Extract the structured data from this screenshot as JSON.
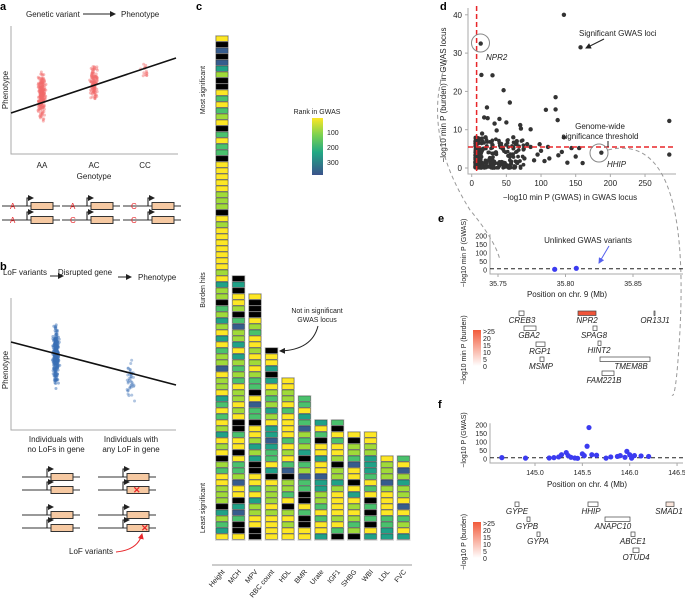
{
  "panels": {
    "a": {
      "label": "a",
      "flow": [
        "Genetic variant",
        "Phenotype"
      ],
      "ylabel": "Phenotype",
      "xlabel": "Genotype",
      "categories": [
        "AA",
        "AC",
        "CC"
      ],
      "genotype_rows": [
        [
          "A",
          "A"
        ],
        [
          "A",
          "C"
        ],
        [
          "C",
          "C"
        ]
      ],
      "point_color": "#f26b6b"
    },
    "b": {
      "label": "b",
      "flow": [
        "LoF variants",
        "Disrupted gene",
        "Phenotype"
      ],
      "ylabel": "Phenotype",
      "categories": [
        [
          "Individuals with",
          "no LoFs in gene"
        ],
        [
          "Individuals with",
          "any LoF in gene"
        ]
      ],
      "lof_label": "LoF variants",
      "point_color": "#3a6fb5"
    },
    "c": {
      "label": "c",
      "ylabel_top": "Most significant",
      "ylabel_mid": "Burden hits",
      "ylabel_bottom": "Least significant",
      "legend_title": "Rank in GWAS",
      "legend_ticks": [
        "100",
        "200",
        "300"
      ],
      "annotation": [
        "Not in significant",
        "GWAS locus"
      ],
      "traits": [
        "Height",
        "MCH",
        "MPV",
        "RBC count",
        "HDL",
        "BMR",
        "Urate",
        "IGF1",
        "SHBG",
        "WBI",
        "LDL",
        "FVC"
      ],
      "burden_hit_counts": [
        84,
        44,
        41,
        32,
        27,
        24,
        20,
        20,
        18,
        18,
        14,
        14
      ],
      "colors": {
        "not_in_locus": "#000000",
        "viridis": [
          "#fde725",
          "#a0da39",
          "#4ac16d",
          "#1fa187",
          "#277f8e",
          "#365c8d"
        ]
      }
    },
    "d": {
      "label": "d",
      "xlabel": "−log10 min P (GWAS) in GWAS locus",
      "ylabel": "−log10 min P (burden) in GWAS locus",
      "x_ticks": [
        "0",
        "50",
        "100",
        "150",
        "200",
        "250"
      ],
      "y_ticks": [
        "0",
        "10",
        "20",
        "30",
        "40"
      ],
      "annotations": [
        "Significant GWAS loci",
        "Genome-wide",
        "significance threshold"
      ],
      "highlight_genes": [
        "NPR2",
        "HHIP"
      ],
      "threshold_color": "#e8262a",
      "points": [
        [
          13,
          32.5
        ],
        [
          157,
          31.5
        ],
        [
          133,
          40
        ],
        [
          14,
          24.3
        ],
        [
          30,
          24.2
        ],
        [
          46,
          20.3
        ],
        [
          55,
          17.1
        ],
        [
          121,
          18.5
        ],
        [
          121,
          15.3
        ],
        [
          107,
          15.2
        ],
        [
          124,
          12.5
        ],
        [
          22,
          15.8
        ],
        [
          18,
          13.2
        ],
        [
          23,
          13
        ],
        [
          40,
          12.8
        ],
        [
          33,
          11.6
        ],
        [
          50,
          11.9
        ],
        [
          36,
          9.8
        ],
        [
          70,
          11.2
        ],
        [
          71,
          10.3
        ],
        [
          85,
          10.1
        ],
        [
          133,
          8
        ],
        [
          285,
          12.3
        ],
        [
          285,
          3.5
        ],
        [
          187,
          4
        ],
        [
          160,
          1.3
        ],
        [
          138,
          1.4
        ],
        [
          150,
          3
        ],
        [
          155,
          5.2
        ],
        [
          144,
          5.2
        ],
        [
          130,
          4.2
        ],
        [
          125,
          3.3
        ],
        [
          112,
          2.5
        ],
        [
          100,
          4.5
        ],
        [
          95,
          3.5
        ],
        [
          90,
          2
        ],
        [
          98,
          6.2
        ],
        [
          80,
          6.2
        ],
        [
          60,
          8
        ],
        [
          65,
          7
        ],
        [
          75,
          5
        ],
        [
          45,
          5
        ],
        [
          55,
          3
        ],
        [
          30,
          6
        ],
        [
          20,
          8
        ],
        [
          15,
          9
        ],
        [
          10,
          5
        ],
        [
          12,
          3
        ],
        [
          8,
          1
        ],
        [
          25,
          2
        ],
        [
          35,
          4
        ],
        [
          40,
          1.5
        ],
        [
          65,
          1.5
        ],
        [
          110,
          5.5
        ],
        [
          105,
          1.8
        ],
        [
          76,
          2.5
        ],
        [
          85,
          5.5
        ]
      ]
    },
    "e": {
      "label": "e",
      "ylabel": "−log10 min P (GWAS)",
      "xlabel": "Position on chr. 9 (Mb)",
      "x_ticks": [
        "35.75",
        "35.80",
        "35.85"
      ],
      "y_ticks": [
        "0",
        "50",
        "100",
        "150",
        "200"
      ],
      "annotation": "Unlinked GWAS variants",
      "points": [
        [
          35.792,
          4
        ],
        [
          35.808,
          10
        ]
      ],
      "burden_label": "−log10 min P (burden)",
      "burden_ticks": [
        "0",
        "5",
        "10",
        "15",
        "20",
        ">25"
      ],
      "genes": [
        "CREB3",
        "GBA2",
        "RGP1",
        "MSMP",
        "NPR2",
        "SPAG8",
        "HINT2",
        "TMEM8B",
        "FAM221B",
        "OR13J1"
      ]
    },
    "f": {
      "label": "f",
      "ylabel": "−log10 P (GWAS)",
      "xlabel": "Position on chr. 4 (Mb)",
      "x_ticks": [
        "145.0",
        "145.5",
        "146.0",
        "146.5"
      ],
      "y_ticks": [
        "0",
        "50",
        "100",
        "150",
        "200"
      ],
      "points": [
        [
          144.65,
          8
        ],
        [
          144.9,
          5
        ],
        [
          145.15,
          6
        ],
        [
          145.2,
          8
        ],
        [
          145.25,
          12
        ],
        [
          145.28,
          25
        ],
        [
          145.33,
          38
        ],
        [
          145.35,
          20
        ],
        [
          145.38,
          10
        ],
        [
          145.42,
          6
        ],
        [
          145.45,
          4
        ],
        [
          145.5,
          30
        ],
        [
          145.52,
          20
        ],
        [
          145.55,
          75
        ],
        [
          145.57,
          185
        ],
        [
          145.6,
          25
        ],
        [
          145.65,
          22
        ],
        [
          145.75,
          5
        ],
        [
          145.8,
          12
        ],
        [
          145.87,
          15
        ],
        [
          145.9,
          20
        ],
        [
          145.95,
          10
        ],
        [
          145.97,
          45
        ],
        [
          146.0,
          25
        ],
        [
          146.02,
          5
        ],
        [
          146.05,
          20
        ],
        [
          146.12,
          18
        ],
        [
          146.2,
          15
        ]
      ],
      "burden_label": "−log10 P (burden)",
      "burden_ticks": [
        "0",
        "5",
        "10",
        "15",
        "20",
        ">25"
      ],
      "genes": [
        "GYPE",
        "GYPB",
        "GYPA",
        "HHIP",
        "ANAPC10",
        "ABCE1",
        "OTUD4",
        "SMAD1"
      ]
    }
  }
}
